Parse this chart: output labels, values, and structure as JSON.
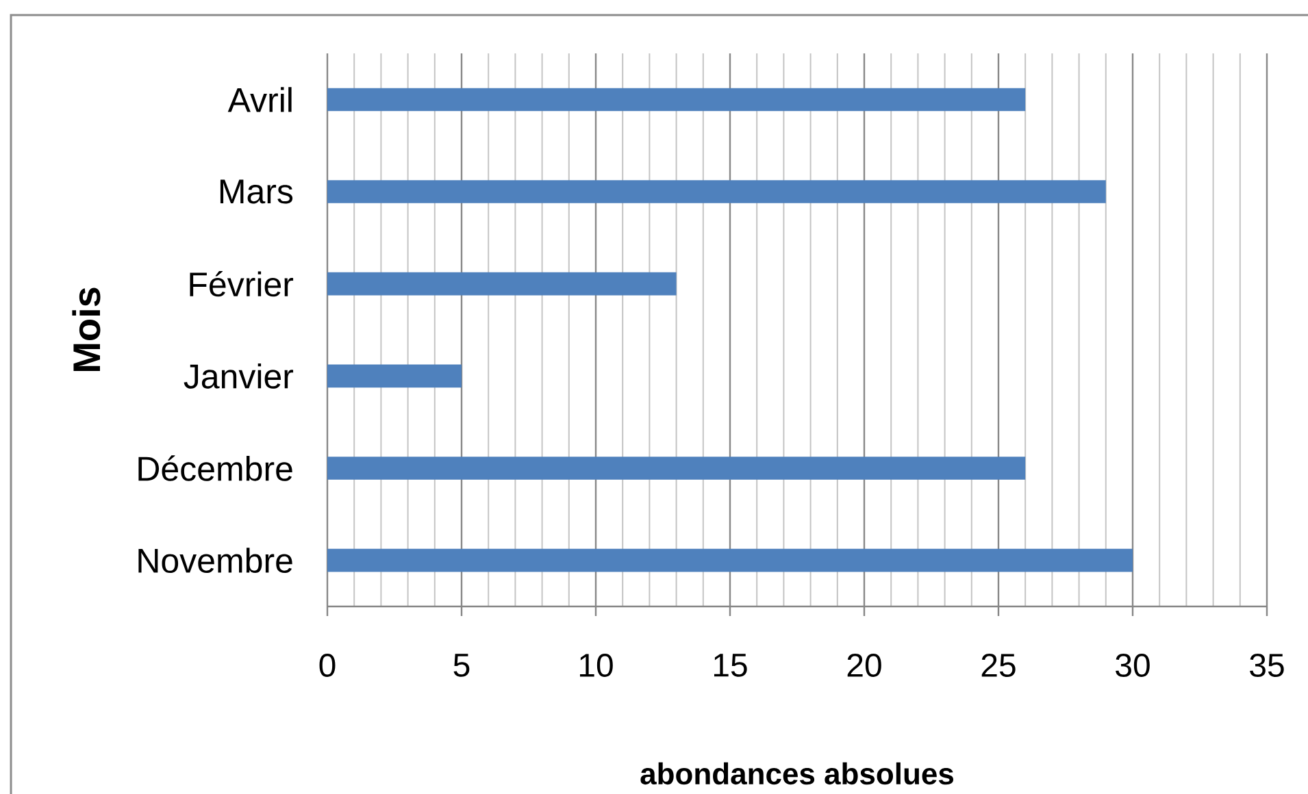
{
  "chart_data": {
    "type": "bar",
    "orientation": "horizontal",
    "xlabel": "abondances absolues",
    "ylabel": "Mois",
    "categories": [
      "Avril",
      "Mars",
      "Février",
      "Janvier",
      "Décembre",
      "Novembre"
    ],
    "values": [
      26,
      29,
      13,
      5,
      26,
      30
    ],
    "color": "#4f81bd",
    "xlim": [
      0,
      35
    ],
    "xticks": [
      0,
      {
        "value": 1,
        "label": null
      },
      {
        "value": 2,
        "label": null
      },
      {
        "value": 3,
        "label": null
      },
      {
        "value": 4,
        "label": null
      },
      5,
      {
        "value": 6,
        "label": null
      },
      {
        "value": 7,
        "label": null
      },
      {
        "value": 8,
        "label": null
      },
      {
        "value": 9,
        "label": null
      },
      10,
      {
        "value": 11,
        "label": null
      },
      {
        "value": 12,
        "label": null
      },
      {
        "value": 13,
        "label": null
      },
      {
        "value": 14,
        "label": null
      },
      15,
      {
        "value": 16,
        "label": null
      },
      {
        "value": 17,
        "label": null
      },
      {
        "value": 18,
        "label": null
      },
      {
        "value": 19,
        "label": null
      },
      20,
      {
        "value": 21,
        "label": null
      },
      {
        "value": 22,
        "label": null
      },
      {
        "value": 23,
        "label": null
      },
      {
        "value": 24,
        "label": null
      },
      25,
      {
        "value": 26,
        "label": null
      },
      {
        "value": 27,
        "label": null
      },
      {
        "value": 28,
        "label": null
      },
      {
        "value": 29,
        "label": null
      },
      30,
      {
        "value": 31,
        "label": null
      },
      {
        "value": 32,
        "label": null
      },
      {
        "value": 33,
        "label": null
      },
      {
        "value": 34,
        "label": null
      },
      35
    ],
    "grid": "x"
  }
}
